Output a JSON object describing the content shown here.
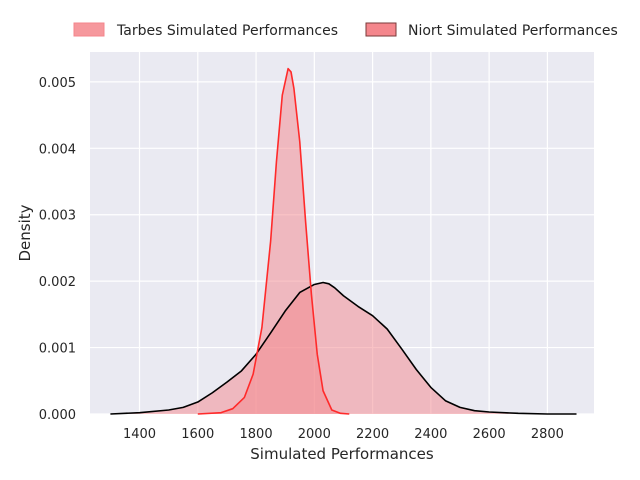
{
  "chart_data": {
    "type": "area",
    "xlabel": "Simulated Performances",
    "ylabel": "Density",
    "xlim": [
      1230,
      2960
    ],
    "ylim": [
      0,
      0.00545
    ],
    "x_ticks": [
      1400,
      1600,
      1800,
      2000,
      2200,
      2400,
      2600,
      2800
    ],
    "y_ticks": [
      0.0,
      0.001,
      0.002,
      0.003,
      0.004,
      0.005
    ],
    "y_tick_labels": [
      "0.000",
      "0.001",
      "0.002",
      "0.003",
      "0.004",
      "0.005"
    ],
    "grid": true,
    "legend_placement": "top-center, outside plot",
    "background": "#eaeaf2",
    "series": [
      {
        "name": "Tarbes Simulated Performances",
        "fill": "#f4868c",
        "fill_opacity": 0.5,
        "line": "#ff2a2a",
        "x": [
          1600,
          1680,
          1720,
          1760,
          1790,
          1820,
          1850,
          1870,
          1890,
          1910,
          1920,
          1930,
          1950,
          1970,
          1990,
          2010,
          2030,
          2060,
          2090,
          2120
        ],
        "y": [
          0.0,
          2e-05,
          8e-05,
          0.00025,
          0.0006,
          0.0013,
          0.0026,
          0.0038,
          0.0048,
          0.0052,
          0.00515,
          0.0049,
          0.0041,
          0.0029,
          0.0018,
          0.0009,
          0.00035,
          6e-05,
          1e-05,
          0.0
        ]
      },
      {
        "name": "Niort Simulated Performances",
        "fill": "#f4868c",
        "fill_opacity": 0.5,
        "line": "#000000",
        "x": [
          1300,
          1400,
          1500,
          1550,
          1600,
          1650,
          1700,
          1750,
          1800,
          1850,
          1900,
          1950,
          2000,
          2030,
          2050,
          2070,
          2100,
          2150,
          2200,
          2250,
          2300,
          2350,
          2400,
          2450,
          2500,
          2550,
          2600,
          2700,
          2800,
          2900
        ],
        "y": [
          0.0,
          2e-05,
          6e-05,
          0.0001,
          0.00018,
          0.00032,
          0.00048,
          0.00065,
          0.0009,
          0.00122,
          0.00155,
          0.00183,
          0.00195,
          0.00198,
          0.00196,
          0.0019,
          0.00178,
          0.00162,
          0.00148,
          0.00128,
          0.00098,
          0.00067,
          0.0004,
          0.0002,
          0.0001,
          5e-05,
          3e-05,
          1e-05,
          0.0,
          0.0
        ]
      }
    ]
  }
}
